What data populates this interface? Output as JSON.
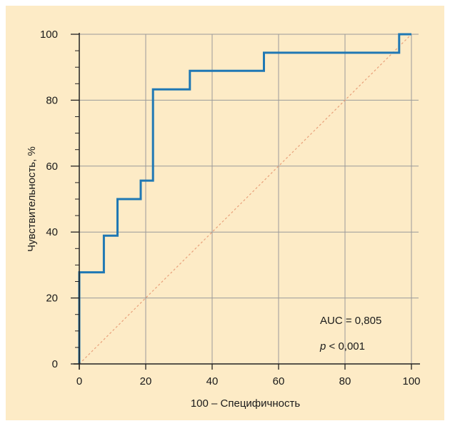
{
  "chart_data": {
    "type": "line",
    "title": "",
    "xlabel": "100 – Специфичность",
    "ylabel": "Чувствительность, %",
    "xlim": [
      0,
      100
    ],
    "ylim": [
      0,
      100
    ],
    "x_ticks": [
      "0",
      "20",
      "40",
      "60",
      "80",
      "100"
    ],
    "y_ticks": [
      "0",
      "20",
      "40",
      "60",
      "80",
      "100"
    ],
    "grid": true,
    "series": [
      {
        "name": "",
        "color": "#1f78b4",
        "step": true,
        "points": [
          [
            0,
            0
          ],
          [
            0,
            27.8
          ],
          [
            7.4,
            27.8
          ],
          [
            7.4,
            38.9
          ],
          [
            11.5,
            38.9
          ],
          [
            11.5,
            50
          ],
          [
            18.5,
            50
          ],
          [
            18.5,
            55.6
          ],
          [
            22.2,
            55.6
          ],
          [
            22.2,
            83.3
          ],
          [
            33.3,
            83.3
          ],
          [
            33.3,
            88.9
          ],
          [
            55.6,
            88.9
          ],
          [
            55.6,
            94.4
          ],
          [
            96.3,
            94.4
          ],
          [
            96.3,
            100
          ],
          [
            100,
            100
          ]
        ]
      },
      {
        "name": "",
        "color": "#e8a07a",
        "dashed": true,
        "points": [
          [
            0,
            0
          ],
          [
            100,
            100
          ]
        ]
      }
    ],
    "annotations": {
      "auc": "AUC = 0,805",
      "p_symbol": "p",
      "p_rest": " < 0,001"
    }
  }
}
